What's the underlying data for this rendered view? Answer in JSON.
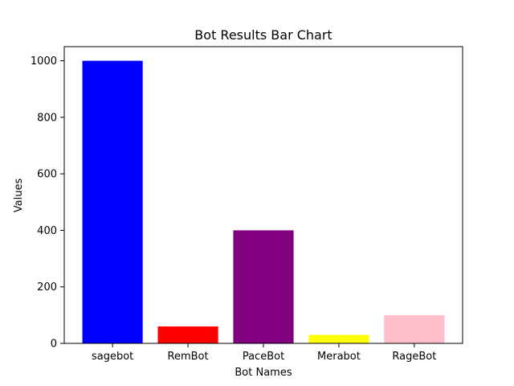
{
  "chart_data": {
    "type": "bar",
    "title": "Bot Results Bar Chart",
    "xlabel": "Bot Names",
    "ylabel": "Values",
    "categories": [
      "sagebot",
      "RemBot",
      "PaceBot",
      "Merabot",
      "RageBot"
    ],
    "values": [
      1000,
      60,
      400,
      30,
      100
    ],
    "colors": [
      "#0000ff",
      "#ff0000",
      "#800080",
      "#ffff00",
      "#ffc0cb"
    ],
    "ylim": [
      0,
      1050
    ],
    "yticks": [
      0,
      200,
      400,
      600,
      800,
      1000
    ],
    "grid": false,
    "legend": "none"
  }
}
